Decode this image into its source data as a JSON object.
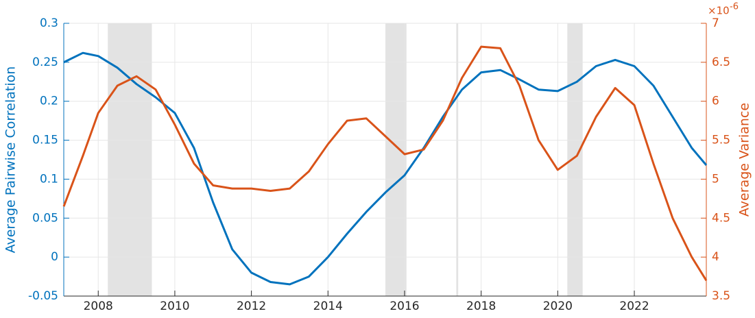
{
  "chart_data": {
    "type": "line",
    "x": [
      2007.1,
      2007.6,
      2008.0,
      2008.5,
      2009.0,
      2009.5,
      2010.0,
      2010.5,
      2011.0,
      2011.5,
      2012.0,
      2012.5,
      2013.0,
      2013.5,
      2014.0,
      2014.5,
      2015.0,
      2015.5,
      2016.0,
      2016.5,
      2017.0,
      2017.5,
      2018.0,
      2018.5,
      2019.0,
      2019.5,
      2020.0,
      2020.5,
      2021.0,
      2021.5,
      2022.0,
      2022.5,
      2023.0,
      2023.5,
      2023.88
    ],
    "series": [
      {
        "name": "Average Pairwise Correlation",
        "color": "#0072bd",
        "axis": "y",
        "values": [
          0.25,
          0.262,
          0.258,
          0.243,
          0.222,
          0.205,
          0.185,
          0.14,
          0.07,
          0.01,
          -0.02,
          -0.032,
          -0.035,
          -0.025,
          0.0,
          0.03,
          0.058,
          0.083,
          0.105,
          0.14,
          0.18,
          0.215,
          0.237,
          0.24,
          0.228,
          0.215,
          0.213,
          0.225,
          0.245,
          0.253,
          0.245,
          0.22,
          0.18,
          0.14,
          0.118
        ]
      },
      {
        "name": "Average Variance",
        "color": "#d95319",
        "axis": "y2",
        "values": [
          4.65,
          5.3,
          5.85,
          6.2,
          6.32,
          6.15,
          5.7,
          5.2,
          4.92,
          4.88,
          4.88,
          4.85,
          4.88,
          5.1,
          5.45,
          5.75,
          5.78,
          5.55,
          5.32,
          5.38,
          5.75,
          6.3,
          6.7,
          6.68,
          6.2,
          5.5,
          5.12,
          5.3,
          5.8,
          6.17,
          5.95,
          5.2,
          4.5,
          4.0,
          3.7
        ]
      }
    ],
    "xlim": [
      2007.1,
      2023.88
    ],
    "xticks": [
      2008,
      2010,
      2012,
      2014,
      2016,
      2018,
      2020,
      2022
    ],
    "ylim": [
      -0.05,
      0.3
    ],
    "yticks": [
      -0.05,
      0,
      0.05,
      0.1,
      0.15,
      0.2,
      0.25,
      0.3
    ],
    "y2lim": [
      3.5,
      7
    ],
    "y2ticks": [
      3.5,
      4,
      4.5,
      5,
      5.5,
      6,
      6.5,
      7
    ],
    "y2_scale": {
      "base": "×10",
      "exponent": "-6"
    },
    "ylabel": "Average Pairwise Correlation",
    "y2label": "Average Variance",
    "shaded_regions": [
      [
        2008.25,
        2009.4
      ],
      [
        2015.5,
        2016.05
      ],
      [
        2017.35,
        2017.4
      ],
      [
        2020.25,
        2020.65
      ]
    ],
    "shade_color": "#e3e3e3",
    "grid": true
  }
}
